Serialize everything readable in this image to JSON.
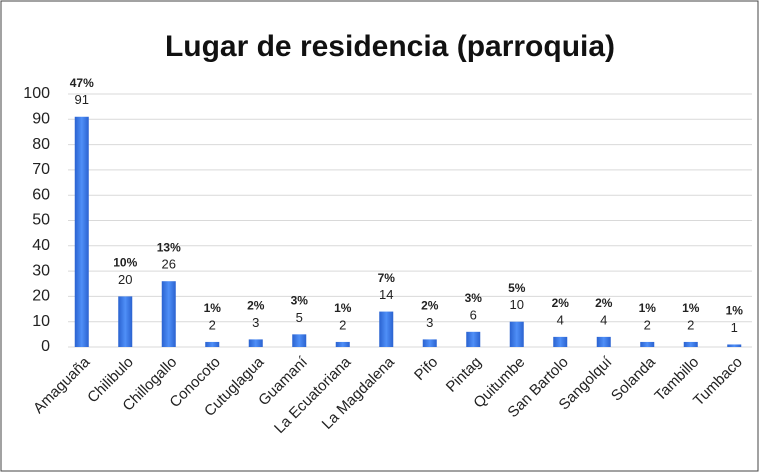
{
  "chart_data": {
    "type": "bar",
    "title": "Lugar de residencia (parroquia)",
    "categories": [
      "Amaguaña",
      "Chilibulo",
      "Chillogallo",
      "Conocoto",
      "Cutuglagua",
      "Guamaní",
      "La Ecuatoriana",
      "La Magdalena",
      "Pifo",
      "Pintag",
      "Quitumbe",
      "San Bartolo",
      "Sangolquí",
      "Solanda",
      "Tambillo",
      "Tumbaco"
    ],
    "values": [
      91,
      20,
      26,
      2,
      3,
      5,
      2,
      14,
      3,
      6,
      10,
      4,
      4,
      2,
      2,
      1
    ],
    "percent_labels": [
      "47%",
      "10%",
      "13%",
      "1%",
      "2%",
      "3%",
      "1%",
      "7%",
      "2%",
      "3%",
      "5%",
      "2%",
      "2%",
      "1%",
      "1%",
      "1%"
    ],
    "color": "#3f7ef0",
    "ylim": [
      0,
      100
    ],
    "yticks": [
      0,
      10,
      20,
      30,
      40,
      50,
      60,
      70,
      80,
      90,
      100
    ],
    "grid": true
  }
}
